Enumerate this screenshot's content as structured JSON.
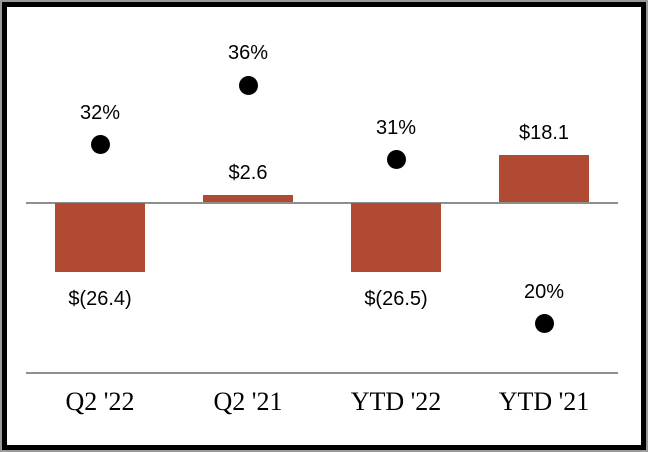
{
  "chart_data": {
    "type": "bar",
    "subtype": "bar-with-scatter-overlay",
    "title": "",
    "xlabel": "",
    "ylabel": "",
    "legend": "none",
    "grid": false,
    "axis_lines": [
      "zero-baseline",
      "category-baseline"
    ],
    "categories": [
      "Q2 '22",
      "Q2 '21",
      "YTD '22",
      "YTD '21"
    ],
    "series": [
      {
        "name": "dollar-amount-bars",
        "type": "bar",
        "values": [
          -26.4,
          2.6,
          -26.5,
          18.1
        ],
        "labels": [
          "$(26.4)",
          "$2.6",
          "$(26.5)",
          "$18.1"
        ]
      },
      {
        "name": "percentage-markers",
        "type": "scatter",
        "values": [
          32,
          36,
          31,
          20
        ],
        "labels": [
          "32%",
          "36%",
          "31%",
          "20%"
        ]
      }
    ],
    "colors": {
      "bar_fill": "#b04a33",
      "marker_fill": "#000000",
      "axis_line": "#8e8e8e",
      "label_text": "#000000",
      "frame_border": "#000000",
      "frame_outer_edge": "#9a9a9a",
      "background": "#ffffff"
    }
  }
}
